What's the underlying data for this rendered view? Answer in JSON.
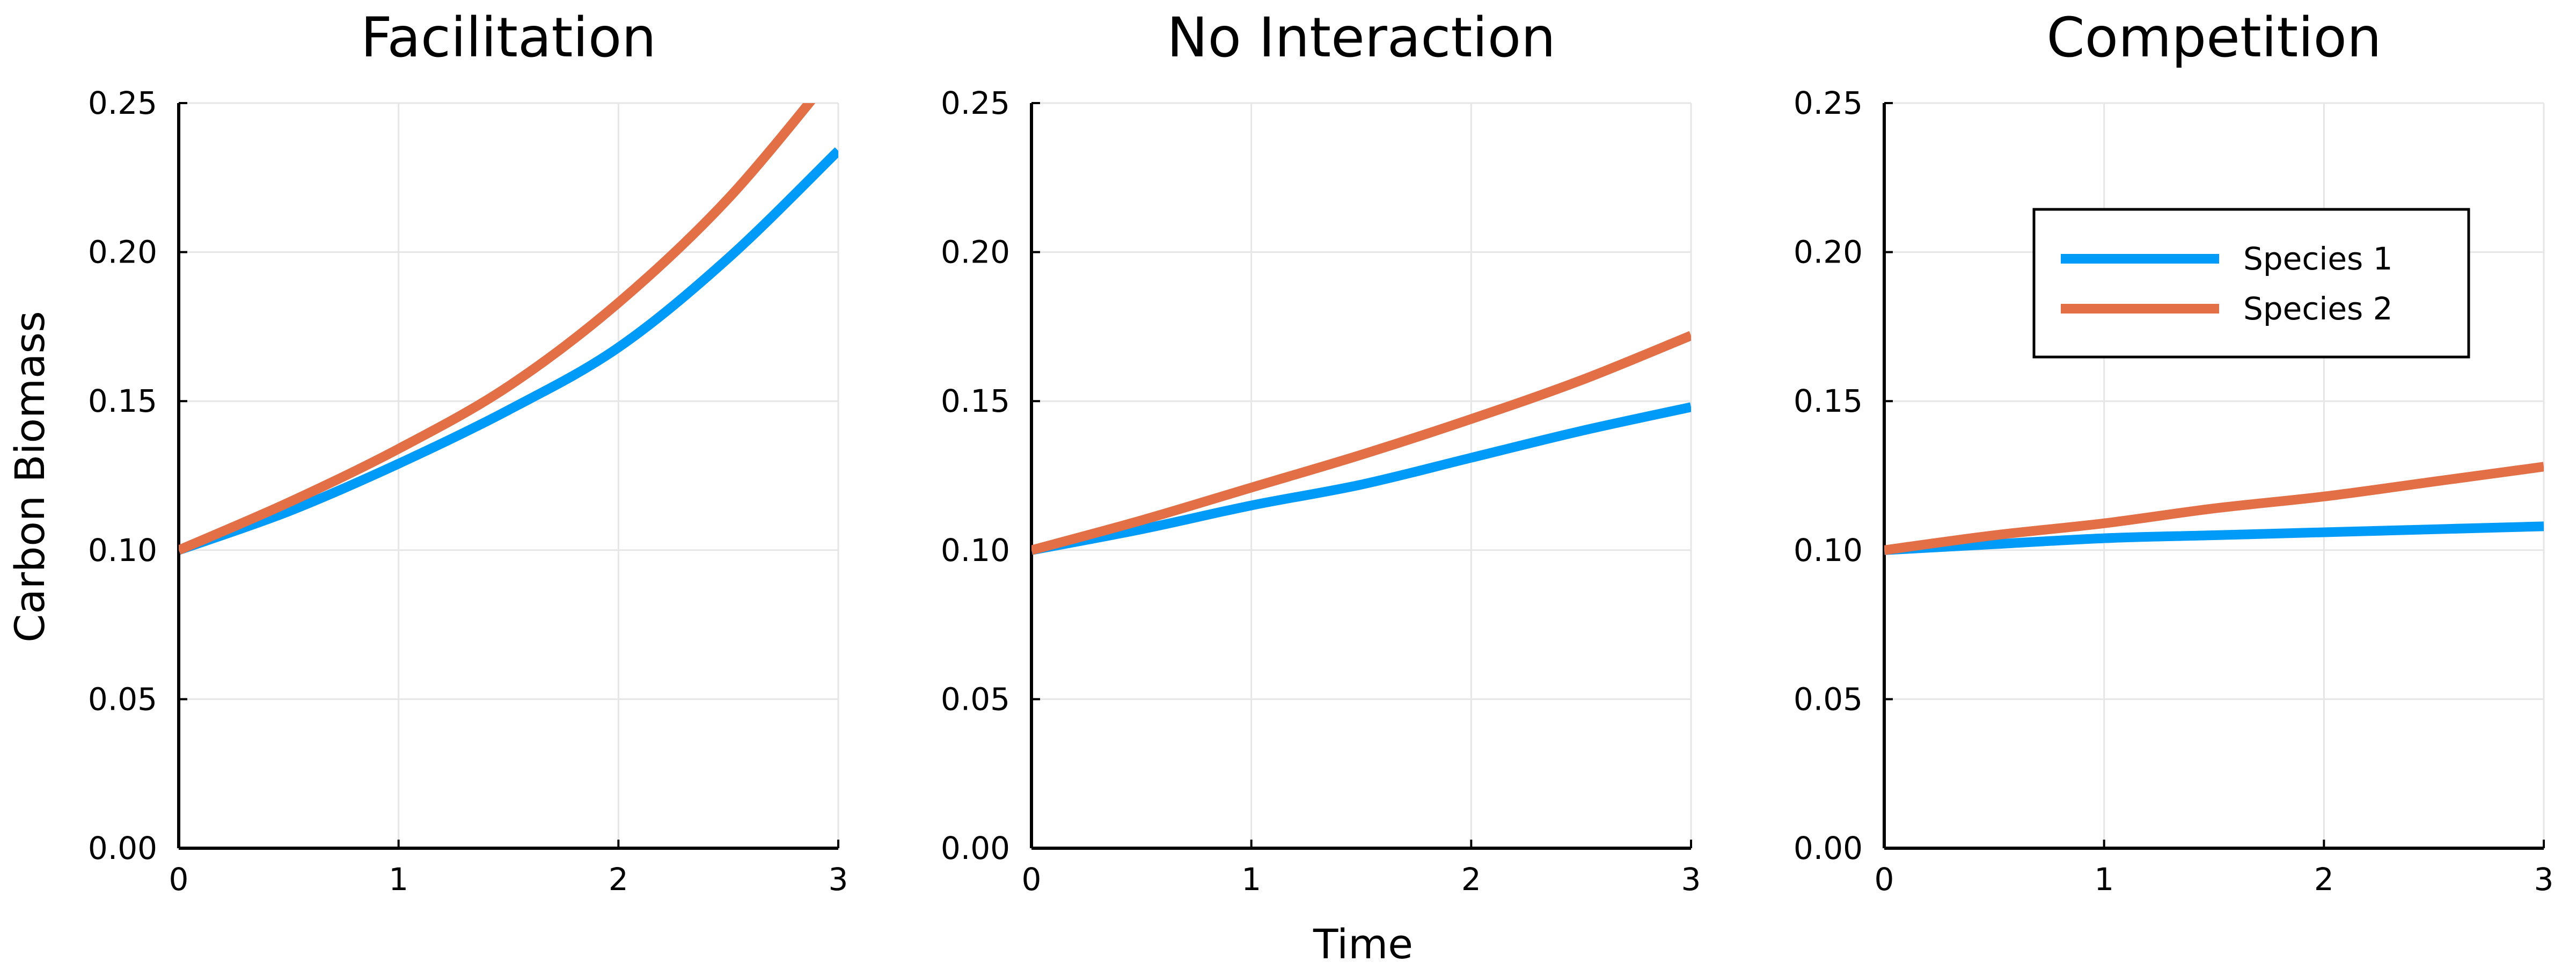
{
  "colors": {
    "species1": "#009AF9",
    "species2": "#E26F46"
  },
  "figure": {
    "xlabel": "Time",
    "ylabel": "Carbon Biomass"
  },
  "legend": {
    "placement": "top-right (in Competition panel)",
    "entries": [
      "Species 1",
      "Species 2"
    ]
  },
  "chart_data": [
    {
      "type": "line",
      "title": "Facilitation",
      "xlim": [
        0,
        3
      ],
      "ylim": [
        0,
        0.25
      ],
      "x_ticks": [
        "0",
        "1",
        "2",
        "3"
      ],
      "y_ticks": [
        "0.00",
        "0.05",
        "0.10",
        "0.15",
        "0.20",
        "0.25"
      ],
      "grid": true,
      "x": [
        0,
        0.5,
        1,
        1.5,
        2,
        2.5,
        3
      ],
      "series": [
        {
          "name": "Species 1",
          "values": [
            0.1,
            0.113,
            0.129,
            0.147,
            0.168,
            0.198,
            0.234
          ]
        },
        {
          "name": "Species 2",
          "values": [
            0.1,
            0.116,
            0.134,
            0.155,
            0.183,
            0.218,
            0.262
          ]
        }
      ]
    },
    {
      "type": "line",
      "title": "No Interaction",
      "xlim": [
        0,
        3
      ],
      "ylim": [
        0,
        0.25
      ],
      "x_ticks": [
        "0",
        "1",
        "2",
        "3"
      ],
      "y_ticks": [
        "0.00",
        "0.05",
        "0.10",
        "0.15",
        "0.20",
        "0.25"
      ],
      "grid": true,
      "x": [
        0,
        0.5,
        1,
        1.5,
        2,
        2.5,
        3
      ],
      "series": [
        {
          "name": "Species 1",
          "values": [
            0.1,
            0.107,
            0.115,
            0.122,
            0.131,
            0.14,
            0.148
          ]
        },
        {
          "name": "Species 2",
          "values": [
            0.1,
            0.11,
            0.121,
            0.132,
            0.144,
            0.157,
            0.172
          ]
        }
      ]
    },
    {
      "type": "line",
      "title": "Competition",
      "xlim": [
        0,
        3
      ],
      "ylim": [
        0,
        0.25
      ],
      "x_ticks": [
        "0",
        "1",
        "2",
        "3"
      ],
      "y_ticks": [
        "0.00",
        "0.05",
        "0.10",
        "0.15",
        "0.20",
        "0.25"
      ],
      "grid": true,
      "x": [
        0,
        0.5,
        1,
        1.5,
        2,
        2.5,
        3
      ],
      "series": [
        {
          "name": "Species 1",
          "values": [
            0.1,
            0.102,
            0.104,
            0.105,
            0.106,
            0.107,
            0.108
          ]
        },
        {
          "name": "Species 2",
          "values": [
            0.1,
            0.105,
            0.109,
            0.114,
            0.118,
            0.123,
            0.128
          ]
        }
      ]
    }
  ]
}
